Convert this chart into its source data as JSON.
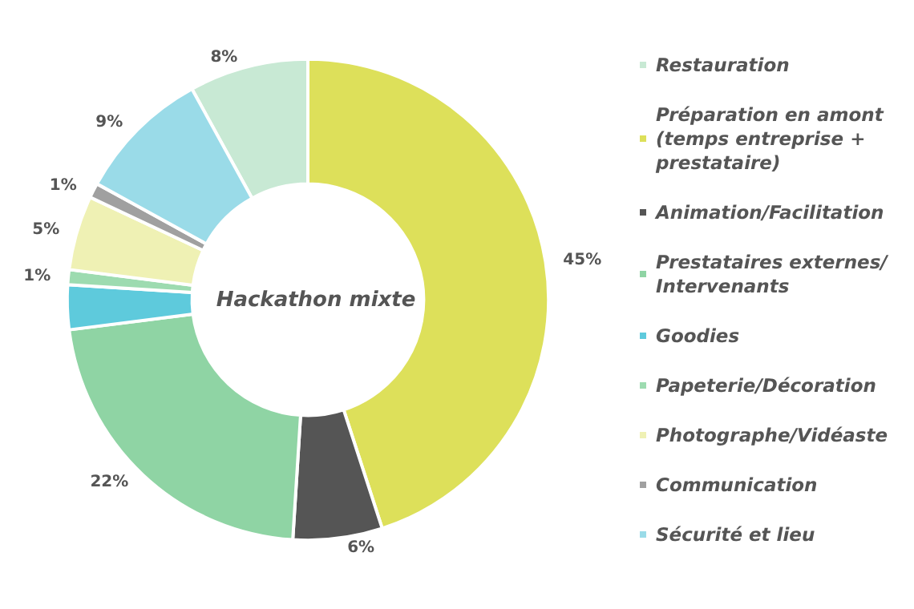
{
  "chart_data": {
    "type": "donut",
    "title": "Hackathon mixte",
    "categories": [
      "Restauration",
      "Préparation en amont (temps entreprise + prestataire)",
      "Animation/Facilitation",
      "Prestataires externes/Intervenants",
      "Goodies",
      "Papeterie/Décoration",
      "Photographe/Vidéaste",
      "Communication",
      "Sécurité et lieu"
    ],
    "values": [
      8,
      45,
      6,
      22,
      3,
      1,
      5,
      1,
      9
    ],
    "value_labels": [
      "8%",
      "45%",
      "6%",
      "22%",
      null,
      "1%",
      "5%",
      "1%",
      "9%"
    ],
    "colors": [
      "#c8e9d4",
      "#dde05a",
      "#555555",
      "#8fd4a4",
      "#5ecadc",
      "#9ddbb0",
      "#eff1b4",
      "#a0a0a0",
      "#9adbe8"
    ],
    "legend": "right"
  }
}
